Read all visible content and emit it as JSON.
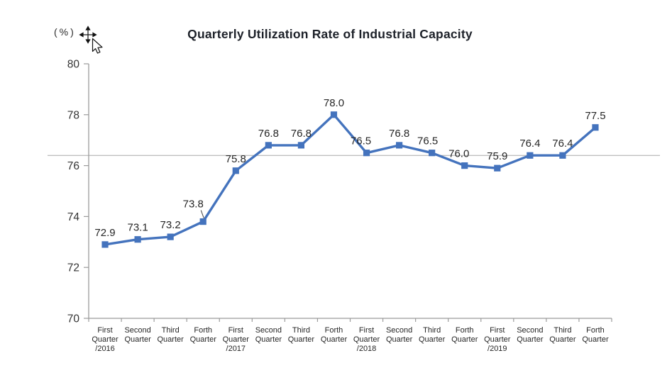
{
  "chart_data": {
    "type": "line",
    "title": "Quarterly Utilization Rate of Industrial Capacity",
    "unit": "(%)",
    "xlabel": "",
    "ylabel": "(%)",
    "ylim": [
      70,
      80
    ],
    "yticks": [
      70,
      72,
      74,
      76,
      78,
      80
    ],
    "grid": false,
    "legend": false,
    "marker": "square",
    "line_color": "#4473bd",
    "reference_line_y": 76.4,
    "categories": [
      [
        "First",
        "Quarter",
        "/2016"
      ],
      [
        "Second",
        "Quarter"
      ],
      [
        "Third",
        "Quarter"
      ],
      [
        "Forth",
        "Quarter"
      ],
      [
        "First",
        "Quarter",
        "/2017"
      ],
      [
        "Second",
        "Quarter"
      ],
      [
        "Third",
        "Quarter"
      ],
      [
        "Forth",
        "Quarter"
      ],
      [
        "First",
        "Quarter",
        "/2018"
      ],
      [
        "Second",
        "Quarter"
      ],
      [
        "Third",
        "Quarter"
      ],
      [
        "Forth",
        "Quarter"
      ],
      [
        "First",
        "Quarter",
        "/2019"
      ],
      [
        "Second",
        "Quarter"
      ],
      [
        "Third",
        "Quarter"
      ],
      [
        "Forth",
        "Quarter"
      ]
    ],
    "values": [
      72.9,
      73.1,
      73.2,
      73.8,
      75.8,
      76.8,
      76.8,
      78.0,
      76.5,
      76.8,
      76.5,
      76.0,
      75.9,
      76.4,
      76.4,
      77.5
    ],
    "data_labels": [
      "72.9",
      "73.1",
      "73.2",
      "73.8",
      "75.8",
      "76.8",
      "76.8",
      "78.0",
      "76.5",
      "76.8",
      "76.5",
      "76.0",
      "75.9",
      "76.4",
      "76.4",
      "77.5"
    ],
    "label_offsets": {
      "3": {
        "dx": -14,
        "dy": -8,
        "leader": true
      },
      "8": {
        "dx": -8,
        "dy": 0
      },
      "10": {
        "dx": -6,
        "dy": 0
      },
      "11": {
        "dx": -8,
        "dy": 0
      }
    },
    "colors": {
      "axis": "#9b9b9b",
      "reference_line": "#a9a9a9",
      "tick_text": "#333333",
      "data_label": "#262626",
      "category_text": "#262626",
      "title_text": "#1d2129",
      "cursor_black": "#111111"
    }
  }
}
